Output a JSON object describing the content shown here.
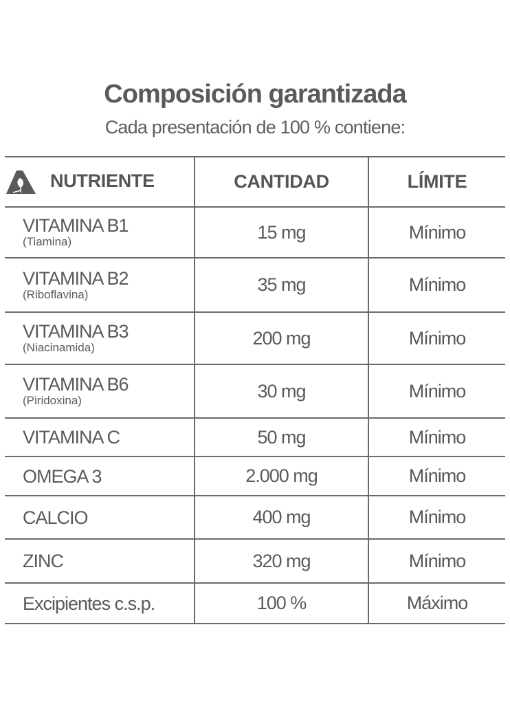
{
  "header": {
    "title": "Composición garantizada",
    "subtitle": "Cada presentación de 100 % contiene:"
  },
  "table": {
    "logo_icon": "leaf-triangle-logo-icon",
    "columns": [
      "NUTRIENTE",
      "CANTIDAD",
      "LÍMITE"
    ],
    "rows": [
      {
        "name": "VITAMINA B1",
        "sub": "(Tiamina)",
        "amount": "15 mg",
        "limit": "Mínimo"
      },
      {
        "name": "VITAMINA B2",
        "sub": "(Riboflavina)",
        "amount": "35 mg",
        "limit": "Mínimo"
      },
      {
        "name": "VITAMINA B3",
        "sub": "(Niacinamida)",
        "amount": "200 mg",
        "limit": "Mínimo"
      },
      {
        "name": "VITAMINA B6",
        "sub": "(Piridoxina)",
        "amount": "30 mg",
        "limit": "Mínimo"
      },
      {
        "name": "VITAMINA C",
        "sub": "",
        "amount": "50 mg",
        "limit": "Mínimo"
      },
      {
        "name": "OMEGA 3",
        "sub": "",
        "amount": "2.000 mg",
        "limit": "Mínimo"
      },
      {
        "name": "CALCIO",
        "sub": "",
        "amount": "400 mg",
        "limit": "Mínimo"
      },
      {
        "name": "ZINC",
        "sub": "",
        "amount": "320 mg",
        "limit": "Mínimo"
      },
      {
        "name": "Excipientes c.s.p.",
        "sub": "",
        "amount": "100 %",
        "limit": "Máximo"
      }
    ]
  },
  "colors": {
    "text": "#5a5a5a",
    "lines": "#6a6a6a"
  }
}
